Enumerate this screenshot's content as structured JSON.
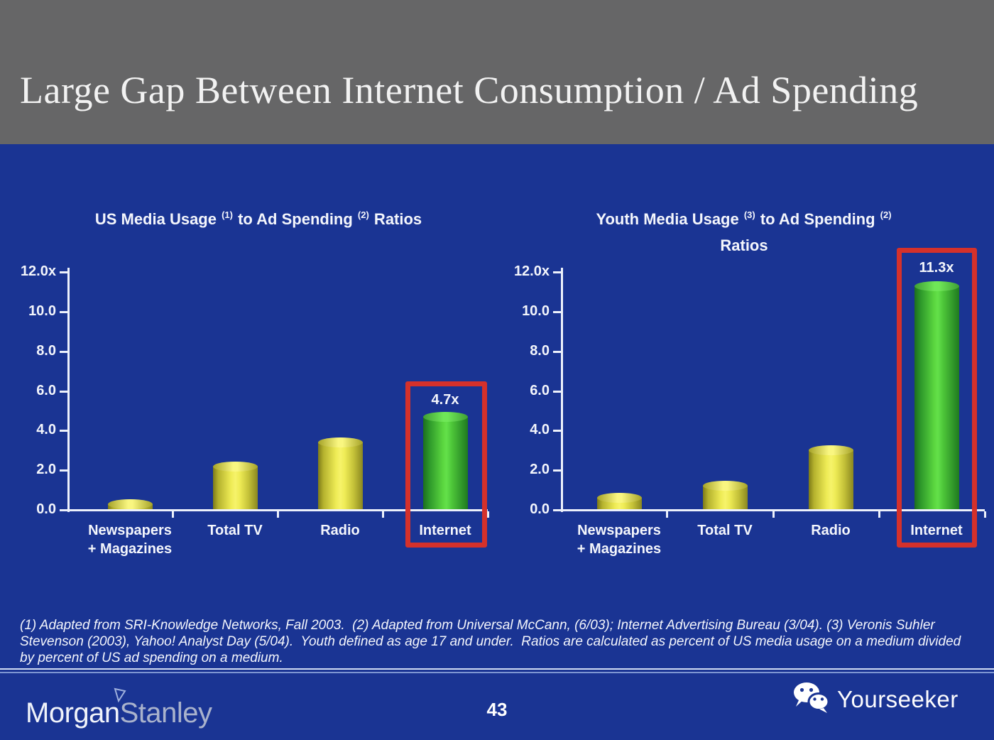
{
  "header": {
    "title": "Large Gap Between Internet Consumption / Ad Spending"
  },
  "chart_data": [
    {
      "type": "bar",
      "title": "US Media Usage (1) to Ad Spending (2) Ratios",
      "title_lines": [
        [
          {
            "text": "US Media Usage "
          },
          {
            "text": "(1)",
            "sup": true
          },
          {
            "text": " to Ad Spending "
          },
          {
            "text": "(2)",
            "sup": true
          },
          {
            "text": " Ratios"
          }
        ]
      ],
      "categories": [
        "Newspapers + Magazines",
        "Total TV",
        "Radio",
        "Internet"
      ],
      "category_lines": [
        [
          "Newspapers",
          "+ Magazines"
        ],
        [
          "Total TV"
        ],
        [
          "Radio"
        ],
        [
          "Internet"
        ]
      ],
      "values": [
        0.3,
        2.2,
        3.4,
        4.7
      ],
      "bar_colors": [
        "yellow",
        "yellow",
        "yellow",
        "green"
      ],
      "highlight_index": 3,
      "data_label": "4.7x",
      "xlabel": "",
      "ylabel": "",
      "ylim": [
        0,
        12
      ],
      "yticks": [
        "12.0x",
        "10.0",
        "8.0",
        "6.0",
        "4.0",
        "2.0",
        "0.0"
      ],
      "grid": false,
      "legend": false
    },
    {
      "type": "bar",
      "title": "Youth Media Usage (3) to Ad Spending (2) Ratios",
      "title_lines": [
        [
          {
            "text": "Youth Media Usage "
          },
          {
            "text": "(3)",
            "sup": true
          },
          {
            "text": " to Ad Spending "
          },
          {
            "text": "(2)",
            "sup": true
          }
        ],
        [
          {
            "text": "Ratios"
          }
        ]
      ],
      "categories": [
        "Newspapers + Magazines",
        "Total TV",
        "Radio",
        "Internet"
      ],
      "category_lines": [
        [
          "Newspapers",
          "+ Magazines"
        ],
        [
          "Total TV"
        ],
        [
          "Radio"
        ],
        [
          "Internet"
        ]
      ],
      "values": [
        0.6,
        1.2,
        3.0,
        11.3
      ],
      "bar_colors": [
        "yellow",
        "yellow",
        "yellow",
        "green"
      ],
      "highlight_index": 3,
      "data_label": "11.3x",
      "xlabel": "",
      "ylabel": "",
      "ylim": [
        0,
        12
      ],
      "yticks": [
        "12.0x",
        "10.0",
        "8.0",
        "6.0",
        "4.0",
        "2.0",
        "0.0"
      ],
      "grid": false,
      "legend": false
    }
  ],
  "footnote": "(1) Adapted from SRI-Knowledge Networks, Fall 2003.  (2) Adapted from Universal McCann, (6/03); Internet Advertising Bureau (3/04). (3) Veronis Suhler Stevenson (2003), Yahoo! Analyst Day (5/04).  Youth defined as age 17 and under.  Ratios are calculated as percent of US media usage on a medium divided by percent of US ad spending on a medium.",
  "footer": {
    "page_number": "43",
    "morgan_stanley": {
      "word1": "Morgan",
      "word2": "Stanley"
    },
    "yourseeker_label": "Yourseeker"
  },
  "icons": {
    "footer_left_logo_mark": "triangle-pennant-icon",
    "footer_right_logo_mark": "wechat-chat-bubbles-icon"
  },
  "colors": {
    "header_gray": "#666667",
    "background_blue": "#1a3493",
    "bar_yellow": "#f2ee5d",
    "bar_green": "#55d23c",
    "highlight_red": "#d5312b",
    "axis_white": "#edf1fb"
  }
}
